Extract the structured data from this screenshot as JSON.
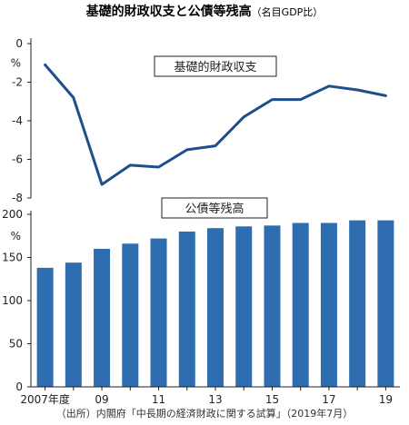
{
  "title": "基礎的財政収支と公債等残高",
  "subtitle": "（名目GDP比）",
  "source": "（出所）内閣府「中長期の経済財政に関する試算」（2019年7月）",
  "colors": {
    "accent": "#1f4e8c",
    "bar": "#2e6db0",
    "axis": "#222222"
  },
  "chart_data": [
    {
      "type": "line",
      "title": "",
      "series_label": "基礎的財政収支",
      "unit": "%",
      "x": [
        "2007",
        "2008",
        "2009",
        "2010",
        "2011",
        "2012",
        "2013",
        "2014",
        "2015",
        "2016",
        "2017",
        "2018",
        "2019"
      ],
      "values": [
        -1.1,
        -2.8,
        -7.3,
        -6.3,
        -6.4,
        -5.5,
        -5.3,
        -3.8,
        -2.9,
        -2.9,
        -2.2,
        -2.4,
        -2.7
      ],
      "ylim": [
        -8,
        0
      ],
      "yticks": [
        "0",
        "-2",
        "-4",
        "-6",
        "-8"
      ]
    },
    {
      "type": "bar",
      "title": "",
      "series_label": "公債等残高",
      "unit": "%",
      "x": [
        "2007",
        "2008",
        "2009",
        "2010",
        "2011",
        "2012",
        "2013",
        "2014",
        "2015",
        "2016",
        "2017",
        "2018",
        "2019"
      ],
      "values": [
        138,
        144,
        160,
        166,
        172,
        180,
        184,
        186,
        187,
        190,
        190,
        193,
        193
      ],
      "ylim": [
        0,
        200
      ],
      "yticks": [
        "200",
        "150",
        "100",
        "50",
        "0"
      ]
    }
  ],
  "x_tick_labels": [
    "2007年度",
    "09",
    "11",
    "13",
    "15",
    "17",
    "19"
  ]
}
